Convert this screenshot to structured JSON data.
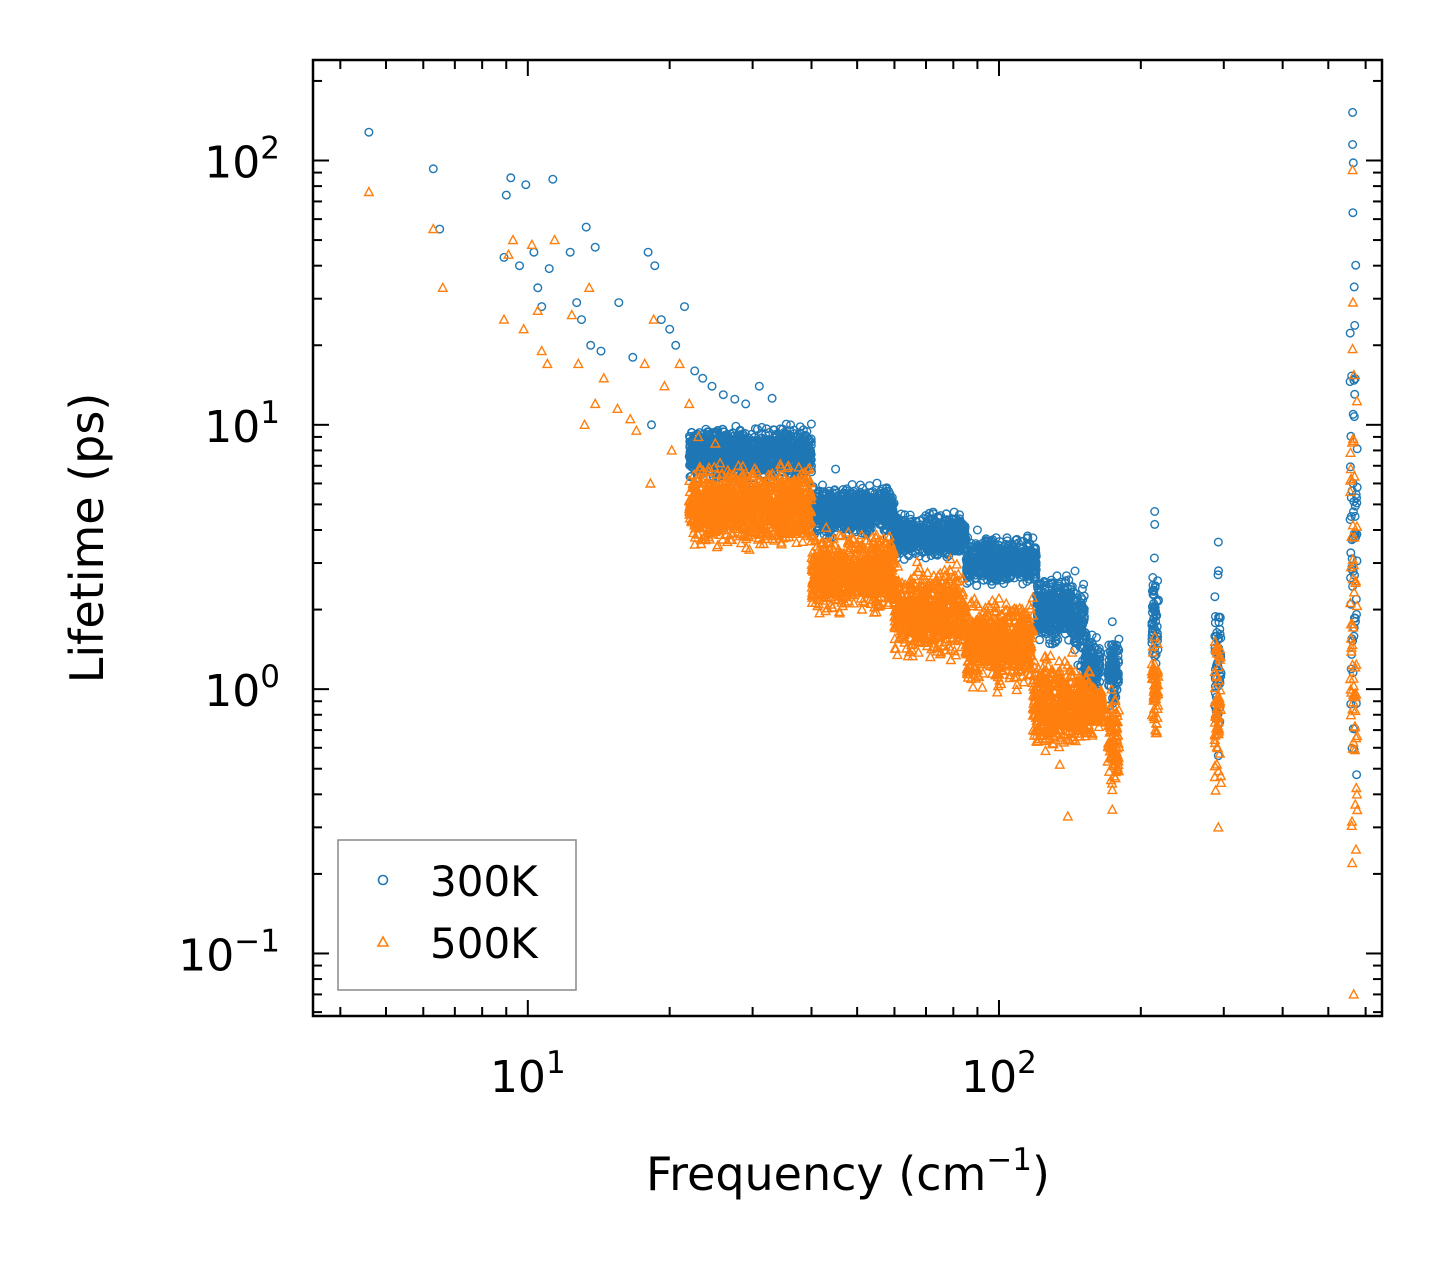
{
  "chart_data": {
    "type": "scatter",
    "xscale": "log",
    "yscale": "log",
    "xlabel": "Frequency (cm",
    "xlabel_sup": "−1",
    "xlabel_end": ")",
    "ylabel": "Lifetime (ps)",
    "xlim": [
      3.5,
      650
    ],
    "ylim": [
      0.058,
      240
    ],
    "xticks": [
      {
        "base": "10",
        "exp": "1",
        "value": 10
      },
      {
        "base": "10",
        "exp": "2",
        "value": 100
      }
    ],
    "yticks": [
      {
        "base": "10",
        "exp": "−1",
        "value": 0.1
      },
      {
        "base": "10",
        "exp": "0",
        "value": 1
      },
      {
        "base": "10",
        "exp": "1",
        "value": 10
      },
      {
        "base": "10",
        "exp": "2",
        "value": 100
      }
    ],
    "legend_position": "bottom-left",
    "colors": {
      "300K": "#1f77b4",
      "500K": "#ff7f0e"
    },
    "series": [
      {
        "name": "300K",
        "marker": "circle",
        "color": "#1f77b4",
        "points": [
          [
            4.6,
            128
          ],
          [
            6.3,
            93
          ],
          [
            6.5,
            55
          ],
          [
            8.9,
            43
          ],
          [
            9.0,
            74
          ],
          [
            9.2,
            86
          ],
          [
            9.6,
            40
          ],
          [
            9.9,
            81
          ],
          [
            10.3,
            45
          ],
          [
            10.5,
            33
          ],
          [
            10.7,
            28
          ],
          [
            11.1,
            39
          ],
          [
            11.3,
            85
          ],
          [
            12.3,
            45
          ],
          [
            12.7,
            29
          ],
          [
            13.0,
            25
          ],
          [
            13.3,
            56
          ],
          [
            13.6,
            20
          ],
          [
            13.9,
            47
          ],
          [
            14.3,
            19
          ],
          [
            15.6,
            29
          ],
          [
            16.7,
            18
          ],
          [
            18.0,
            45
          ],
          [
            18.3,
            10
          ],
          [
            18.6,
            40
          ],
          [
            19.2,
            25
          ],
          [
            20.0,
            23
          ],
          [
            20.6,
            20
          ],
          [
            21.5,
            28
          ],
          [
            22.6,
            16
          ],
          [
            23.5,
            15
          ],
          [
            24.6,
            14
          ],
          [
            26.0,
            13
          ],
          [
            27.5,
            12.5
          ],
          [
            29.0,
            12
          ],
          [
            31.0,
            14
          ],
          [
            33.0,
            12.6
          ],
          [
            36.0,
            9.5
          ],
          [
            40.0,
            7
          ],
          [
            45.0,
            6.8
          ],
          [
            48.0,
            5.5
          ],
          [
            55.0,
            5
          ],
          [
            62.0,
            4.6
          ],
          [
            70.0,
            4.2
          ],
          [
            82.0,
            4.3
          ],
          [
            90.0,
            4
          ],
          [
            100.0,
            3.5
          ],
          [
            115.0,
            3.8
          ],
          [
            145.0,
            2.8
          ],
          [
            174.0,
            1.8
          ],
          [
            214.0,
            4.7
          ],
          [
            214.0,
            4.2
          ],
          [
            292.0,
            3.6
          ],
          [
            563.0,
            152
          ],
          [
            563.0,
            115
          ],
          [
            565.0,
            98
          ]
        ],
        "bands": [
          {
            "x0": 22,
            "x1": 40,
            "ylow": 5.8,
            "yhigh": 10.5
          },
          {
            "x0": 40,
            "x1": 60,
            "ylow": 3.6,
            "yhigh": 6.2
          },
          {
            "x0": 60,
            "x1": 85,
            "ylow": 3.0,
            "yhigh": 4.8
          },
          {
            "x0": 85,
            "x1": 120,
            "ylow": 2.4,
            "yhigh": 3.9
          },
          {
            "x0": 120,
            "x1": 143,
            "ylow": 1.4,
            "yhigh": 2.9
          },
          {
            "x0": 143,
            "x1": 152,
            "ylow": 1.1,
            "yhigh": 2.8
          },
          {
            "x0": 152,
            "x1": 164,
            "ylow": 0.9,
            "yhigh": 1.7
          },
          {
            "x0": 170,
            "x1": 180,
            "ylow": 0.8,
            "yhigh": 1.8
          },
          {
            "x0": 211,
            "x1": 218,
            "ylow": 0.9,
            "yhigh": 3.9
          },
          {
            "x0": 287,
            "x1": 296,
            "ylow": 0.45,
            "yhigh": 3.5
          },
          {
            "x0": 556,
            "x1": 576,
            "ylow": 0.2,
            "yhigh": 90
          }
        ]
      },
      {
        "name": "500K",
        "marker": "triangle",
        "color": "#ff7f0e",
        "points": [
          [
            4.6,
            76
          ],
          [
            6.3,
            55
          ],
          [
            6.6,
            33
          ],
          [
            8.9,
            25
          ],
          [
            9.1,
            44
          ],
          [
            9.3,
            50
          ],
          [
            9.8,
            23
          ],
          [
            10.2,
            48
          ],
          [
            10.5,
            27
          ],
          [
            10.7,
            19
          ],
          [
            11.0,
            17
          ],
          [
            11.4,
            50
          ],
          [
            12.4,
            26
          ],
          [
            12.8,
            17
          ],
          [
            13.2,
            10
          ],
          [
            13.5,
            33
          ],
          [
            13.9,
            12
          ],
          [
            14.5,
            15
          ],
          [
            15.5,
            11.5
          ],
          [
            16.5,
            10.5
          ],
          [
            17.0,
            9.5
          ],
          [
            17.7,
            17
          ],
          [
            18.2,
            6
          ],
          [
            18.5,
            25
          ],
          [
            19.5,
            14
          ],
          [
            20.2,
            8
          ],
          [
            21.0,
            17
          ],
          [
            22.0,
            12
          ],
          [
            23.0,
            9
          ],
          [
            25.0,
            8.5
          ],
          [
            28.0,
            7
          ],
          [
            30.0,
            6.5
          ],
          [
            33.0,
            6
          ],
          [
            40.0,
            3.8
          ],
          [
            48.0,
            3.3
          ],
          [
            55.0,
            2.9
          ],
          [
            65.0,
            2.6
          ],
          [
            80.0,
            2.3
          ],
          [
            100.0,
            2.2
          ],
          [
            118.0,
            1.9
          ],
          [
            140.0,
            0.33
          ],
          [
            174.0,
            0.35
          ],
          [
            292.0,
            0.3
          ],
          [
            563.0,
            92
          ],
          [
            566.0,
            0.07
          ]
        ],
        "bands": [
          {
            "x0": 22,
            "x1": 40,
            "ylow": 3.2,
            "yhigh": 7.5
          },
          {
            "x0": 40,
            "x1": 60,
            "ylow": 1.8,
            "yhigh": 4.2
          },
          {
            "x0": 60,
            "x1": 85,
            "ylow": 1.2,
            "yhigh": 3.2
          },
          {
            "x0": 85,
            "x1": 118,
            "ylow": 0.95,
            "yhigh": 2.4
          },
          {
            "x0": 118,
            "x1": 143,
            "ylow": 0.5,
            "yhigh": 1.5
          },
          {
            "x0": 143,
            "x1": 158,
            "ylow": 0.55,
            "yhigh": 1.3
          },
          {
            "x0": 158,
            "x1": 166,
            "ylow": 0.7,
            "yhigh": 1.1
          },
          {
            "x0": 170,
            "x1": 180,
            "ylow": 0.35,
            "yhigh": 1.1
          },
          {
            "x0": 211,
            "x1": 218,
            "ylow": 0.55,
            "yhigh": 1.9
          },
          {
            "x0": 287,
            "x1": 296,
            "ylow": 0.32,
            "yhigh": 1.9
          },
          {
            "x0": 556,
            "x1": 576,
            "ylow": 0.09,
            "yhigh": 50
          }
        ]
      }
    ]
  }
}
